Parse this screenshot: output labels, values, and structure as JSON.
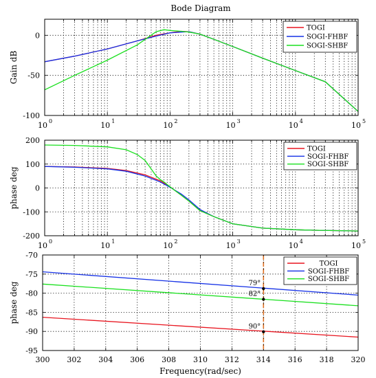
{
  "title": "Bode Diagram",
  "colors": {
    "TOGI": "#e8141e",
    "SOGI-FHBF": "#1430e6",
    "SOGI-SHBF": "#19e01e",
    "marker": "#e07020"
  },
  "chart_data": [
    {
      "type": "line",
      "ylabel": "Gain dB",
      "xscale": "log",
      "xlim": [
        1,
        100000
      ],
      "ylim": [
        -100,
        20
      ],
      "yticks": [
        -100,
        -50,
        0
      ],
      "xtick_labels": [
        {
          "base": "10",
          "exp": "0"
        },
        {
          "base": "10",
          "exp": "1"
        },
        {
          "base": "10",
          "exp": "2"
        },
        {
          "base": "10",
          "exp": "3"
        },
        {
          "base": "10",
          "exp": "4"
        },
        {
          "base": "10",
          "exp": "5"
        }
      ],
      "grid": true,
      "legend": "top-right",
      "series": [
        {
          "name": "TOGI",
          "color": "#e8141e",
          "x": [
            1,
            3,
            10,
            30,
            60,
            100,
            150,
            200,
            300,
            500,
            1000,
            3000,
            10000,
            30000,
            100000
          ],
          "y": [
            -33,
            -26,
            -17,
            -7,
            0,
            3,
            5,
            4.5,
            1.5,
            -5,
            -14,
            -28.5,
            -44,
            -58,
            -95
          ]
        },
        {
          "name": "SOGI-FHBF",
          "color": "#1430e6",
          "x": [
            1,
            3,
            10,
            30,
            60,
            100,
            150,
            200,
            300,
            500,
            1000,
            3000,
            10000,
            30000,
            100000
          ],
          "y": [
            -33,
            -26,
            -17,
            -7,
            -1,
            3,
            4,
            4.5,
            1.5,
            -5,
            -14,
            -28.5,
            -44,
            -58,
            -95
          ]
        },
        {
          "name": "SOGI-SHBF",
          "color": "#19e01e",
          "x": [
            1,
            3,
            10,
            30,
            60,
            80,
            100,
            150,
            200,
            300,
            500,
            1000,
            3000,
            10000,
            30000,
            100000
          ],
          "y": [
            -68,
            -50,
            -31,
            -12,
            4.5,
            7,
            6,
            5,
            4,
            1.5,
            -5,
            -14,
            -28.5,
            -44,
            -58,
            -95
          ]
        }
      ]
    },
    {
      "type": "line",
      "ylabel": "phase deg",
      "xscale": "log",
      "xlim": [
        1,
        100000
      ],
      "ylim": [
        -200,
        200
      ],
      "yticks": [
        -200,
        -100,
        0,
        100,
        200
      ],
      "xtick_labels": [
        {
          "base": "10",
          "exp": "0"
        },
        {
          "base": "10",
          "exp": "1"
        },
        {
          "base": "10",
          "exp": "2"
        },
        {
          "base": "10",
          "exp": "3"
        },
        {
          "base": "10",
          "exp": "4"
        },
        {
          "base": "10",
          "exp": "5"
        }
      ],
      "grid": true,
      "legend": "top-right",
      "series": [
        {
          "name": "TOGI",
          "color": "#e8141e",
          "x": [
            1,
            3,
            10,
            20,
            40,
            70,
            100,
            150,
            200,
            300,
            500,
            1000,
            3000,
            10000,
            20000,
            100000
          ],
          "y": [
            90,
            88,
            82,
            73,
            55,
            30,
            5,
            -30,
            -55,
            -95,
            -120,
            -150,
            -168,
            -175,
            -177,
            -180
          ]
        },
        {
          "name": "SOGI-FHBF",
          "color": "#1430e6",
          "x": [
            1,
            3,
            10,
            20,
            40,
            70,
            100,
            150,
            200,
            300,
            500,
            1000,
            3000,
            10000,
            20000,
            100000
          ],
          "y": [
            90,
            87,
            80,
            70,
            50,
            25,
            3,
            -25,
            -50,
            -90,
            -120,
            -150,
            -168,
            -175,
            -177,
            -180
          ]
        },
        {
          "name": "SOGI-SHBF",
          "color": "#19e01e",
          "x": [
            1,
            3,
            10,
            20,
            30,
            40,
            50,
            60,
            70,
            80,
            100,
            150,
            200,
            300,
            500,
            1000,
            3000,
            10000,
            20000,
            100000
          ],
          "y": [
            180,
            178,
            172,
            160,
            140,
            115,
            80,
            50,
            35,
            25,
            5,
            -30,
            -55,
            -95,
            -120,
            -150,
            -168,
            -175,
            -177,
            -180
          ]
        }
      ]
    },
    {
      "type": "line",
      "xlabel": "Frequency(rad/sec)",
      "ylabel": "phase deg",
      "xlim": [
        300,
        320
      ],
      "ylim": [
        -95,
        -70
      ],
      "xticks": [
        300,
        302,
        304,
        306,
        308,
        310,
        312,
        314,
        316,
        318,
        320
      ],
      "yticks": [
        -95,
        -90,
        -85,
        -80,
        -75,
        -70
      ],
      "grid": true,
      "legend": "top-right",
      "marker_x": 314,
      "annotations": [
        {
          "text": "79°",
          "x": 314,
          "y": -78.8
        },
        {
          "text": "82°",
          "x": 314,
          "y": -81.6
        },
        {
          "text": "90°",
          "x": 314,
          "y": -90.1
        }
      ],
      "series": [
        {
          "name": "TOGI",
          "color": "#e8141e",
          "x": [
            300,
            320
          ],
          "y": [
            -86.3,
            -91.5
          ]
        },
        {
          "name": "SOGI-FHBF",
          "color": "#1430e6",
          "x": [
            300,
            320
          ],
          "y": [
            -74.4,
            -80.5
          ]
        },
        {
          "name": "SOGI-SHBF",
          "color": "#19e01e",
          "x": [
            300,
            320
          ],
          "y": [
            -77.6,
            -83.3
          ]
        }
      ]
    }
  ]
}
